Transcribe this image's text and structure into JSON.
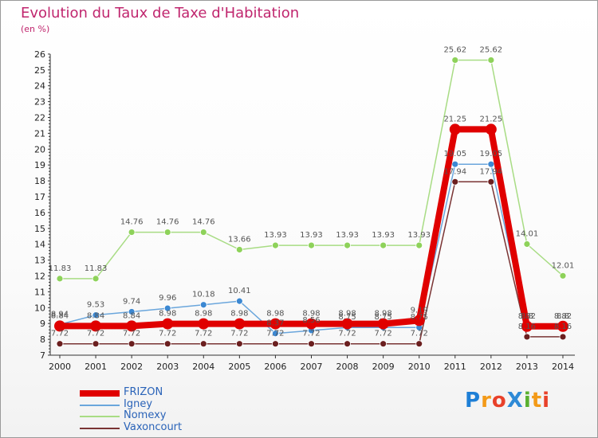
{
  "title": "Evolution du Taux de Taxe d'Habitation",
  "subtitle": "(en %)",
  "logo": {
    "text": "ProXiti",
    "letters": [
      {
        "ch": "P",
        "color": "#1e7fd6"
      },
      {
        "ch": "r",
        "color": "#f39a18"
      },
      {
        "ch": "o",
        "color": "#e8412a"
      },
      {
        "ch": "X",
        "color": "#2e8ad6"
      },
      {
        "ch": "i",
        "color": "#59b030"
      },
      {
        "ch": "t",
        "color": "#f39a18"
      },
      {
        "ch": "i",
        "color": "#e8412a"
      }
    ]
  },
  "chart_data": {
    "type": "line",
    "title": "Evolution du Taux de Taxe d'Habitation",
    "ylabel": "(en %)",
    "xlabel": "",
    "x": [
      "2000",
      "2001",
      "2002",
      "2003",
      "2004",
      "2005",
      "2006",
      "2007",
      "2008",
      "2009",
      "2010",
      "2011",
      "2012",
      "2013",
      "2014"
    ],
    "ylim": [
      7,
      26
    ],
    "yticks": [
      7,
      8,
      9,
      10,
      11,
      12,
      13,
      14,
      15,
      16,
      17,
      18,
      19,
      20,
      21,
      22,
      23,
      24,
      25,
      26
    ],
    "grid": false,
    "legend_position": "bottom-left",
    "series": [
      {
        "name": "Nomexy",
        "color": "#8ed25a",
        "line_color": "#a8dc84",
        "width": 1.5,
        "marker": 4,
        "values": [
          11.83,
          11.83,
          14.76,
          14.76,
          14.76,
          13.66,
          13.93,
          13.93,
          13.93,
          13.93,
          13.93,
          25.62,
          25.62,
          14.01,
          12.01
        ],
        "labels": [
          "11.83",
          "11.83",
          "14.76",
          "14.76",
          "14.76",
          "13.66",
          "13.93",
          "13.93",
          "13.93",
          "13.93",
          "13.93",
          "25.62",
          "25.62",
          "14.01",
          "12.01"
        ]
      },
      {
        "name": "Igney",
        "color": "#3c88d2",
        "line_color": "#6aa6dc",
        "width": 1.5,
        "marker": 4,
        "values": [
          8.94,
          9.53,
          9.74,
          9.96,
          10.18,
          10.41,
          8.37,
          8.56,
          8.75,
          8.75,
          8.75,
          19.05,
          19.05,
          8.8,
          8.8
        ],
        "labels": [
          "8.94",
          "9.53",
          "9.74",
          "9.96",
          "10.18",
          "10.41",
          "8.37",
          "8.56",
          "8.75",
          "8.75",
          "8.75",
          "19.05",
          "19.05",
          "8.8",
          "8.8"
        ]
      },
      {
        "name": "Vaxoncourt",
        "color": "#6b1f1f",
        "line_color": "#7a3434",
        "width": 1.5,
        "marker": 4,
        "values": [
          7.72,
          7.72,
          7.72,
          7.72,
          7.72,
          7.72,
          7.72,
          7.72,
          7.72,
          7.72,
          7.72,
          17.94,
          17.94,
          8.16,
          8.16
        ],
        "labels": [
          "7.72",
          "7.72",
          "7.72",
          "7.72",
          "7.72",
          "7.72",
          "7.72",
          "7.72",
          "7.72",
          "7.72",
          "7.72",
          "17.94",
          "17.94",
          "8.16",
          "8.16"
        ]
      },
      {
        "name": "FRIZON",
        "color": "#e00000",
        "line_color": "#e00000",
        "width": 8,
        "marker": 7,
        "values": [
          8.84,
          8.84,
          8.84,
          8.98,
          8.98,
          8.98,
          8.98,
          8.98,
          8.98,
          8.98,
          9.19,
          21.25,
          21.25,
          8.82,
          8.82
        ],
        "labels": [
          "8.84",
          "8.84",
          "8.84",
          "8.98",
          "8.98",
          "8.98",
          "8.98",
          "8.98",
          "8.98",
          "8.98",
          "9.19",
          "21.25",
          "21.25",
          "8.82",
          "8.82"
        ]
      }
    ],
    "legend": [
      "FRIZON",
      "Igney",
      "Nomexy",
      "Vaxoncourt"
    ]
  }
}
